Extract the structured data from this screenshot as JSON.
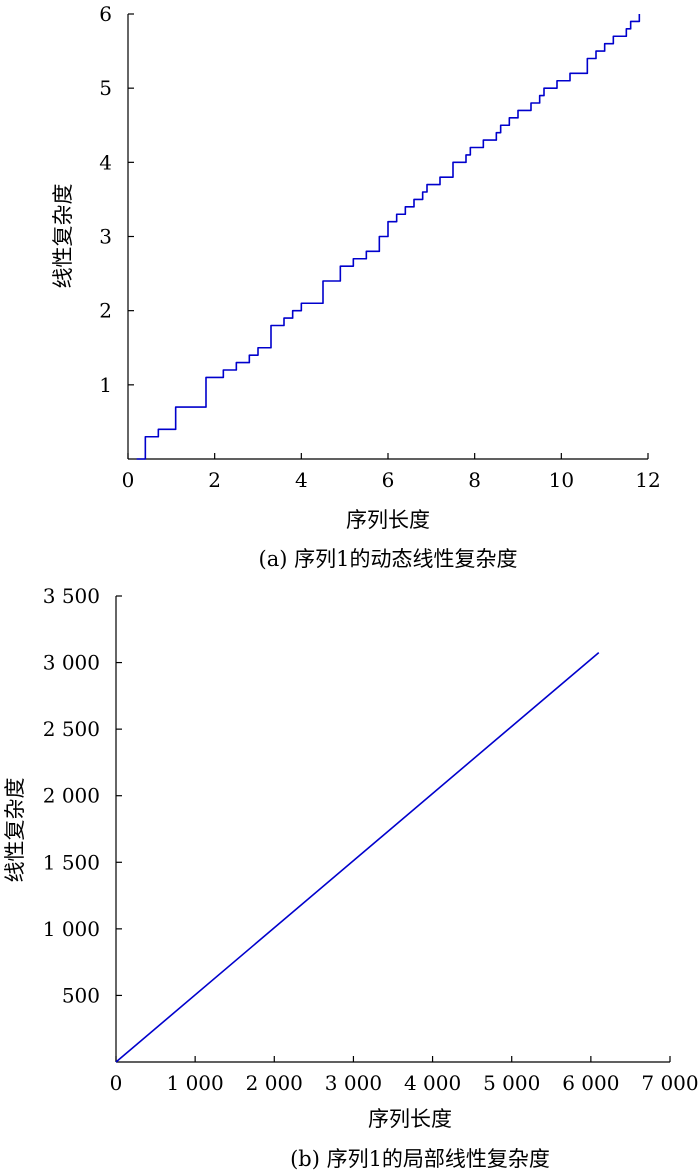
{
  "chart_data": [
    {
      "type": "line",
      "caption": "(a) 序列1的动态线性复杂度",
      "xlabel": "序列长度",
      "ylabel": "线性复杂度",
      "xlim": [
        0,
        12
      ],
      "ylim": [
        0,
        6
      ],
      "x_ticks": [
        0,
        2,
        4,
        6,
        8,
        10,
        12
      ],
      "x_tick_labels": [
        "0",
        "2",
        "4",
        "6",
        "8",
        "10",
        "12"
      ],
      "y_ticks": [
        1,
        2,
        3,
        4,
        5,
        6
      ],
      "y_tick_labels": [
        "1",
        "2",
        "3",
        "4",
        "5",
        "6"
      ],
      "grid": false,
      "series": [
        {
          "color": "#0000cc",
          "step": true,
          "x": [
            0.4,
            0.7,
            0.8,
            1.1,
            1.8,
            2.2,
            2.5,
            2.6,
            2.8,
            3.0,
            3.3,
            3.6,
            3.8,
            4.0,
            4.2,
            4.5,
            4.9,
            5.1,
            5.2,
            5.5,
            5.6,
            5.8,
            6.0,
            6.1,
            6.2,
            6.4,
            6.5,
            6.6,
            6.8,
            6.9,
            7.0,
            7.2,
            7.3,
            7.5,
            7.6,
            7.8,
            7.9,
            8.1,
            8.2,
            8.4,
            8.5,
            8.6,
            8.8,
            9.0,
            9.2,
            9.3,
            9.4,
            9.5,
            9.6,
            9.7,
            9.9,
            10.2,
            10.6,
            10.8,
            11.0,
            11.2,
            11.3,
            11.5,
            11.6,
            11.8
          ],
          "y": [
            0.3,
            0.4,
            0.4,
            0.7,
            1.1,
            1.2,
            1.3,
            1.3,
            1.4,
            1.5,
            1.8,
            1.9,
            2.0,
            2.1,
            2.1,
            2.4,
            2.6,
            2.6,
            2.7,
            2.8,
            2.8,
            3.0,
            3.2,
            3.2,
            3.3,
            3.4,
            3.4,
            3.5,
            3.6,
            3.7,
            3.7,
            3.8,
            3.8,
            4.0,
            4.0,
            4.1,
            4.2,
            4.2,
            4.3,
            4.3,
            4.4,
            4.5,
            4.6,
            4.7,
            4.7,
            4.8,
            4.8,
            4.9,
            5.0,
            5.0,
            5.1,
            5.2,
            5.4,
            5.5,
            5.6,
            5.7,
            5.7,
            5.8,
            5.9,
            6.0
          ]
        }
      ]
    },
    {
      "type": "line",
      "caption": "(b) 序列1的局部线性复杂度",
      "xlabel": "序列长度",
      "ylabel": "线性复杂度",
      "xlim": [
        0,
        7000
      ],
      "ylim": [
        0,
        3500
      ],
      "x_ticks": [
        0,
        1000,
        2000,
        3000,
        4000,
        5000,
        6000,
        7000
      ],
      "x_tick_labels": [
        "0",
        "1 000",
        "2 000",
        "3 000",
        "4 000",
        "5 000",
        "6 000",
        "7 000"
      ],
      "y_ticks": [
        500,
        1000,
        1500,
        2000,
        2500,
        3000,
        3500
      ],
      "y_tick_labels": [
        "500",
        "1 000",
        "1 500",
        "2 000",
        "2 500",
        "3 000",
        "3 500"
      ],
      "grid": false,
      "series": [
        {
          "color": "#0000cc",
          "step": false,
          "x": [
            0,
            6100
          ],
          "y": [
            0,
            3075
          ]
        }
      ]
    }
  ]
}
